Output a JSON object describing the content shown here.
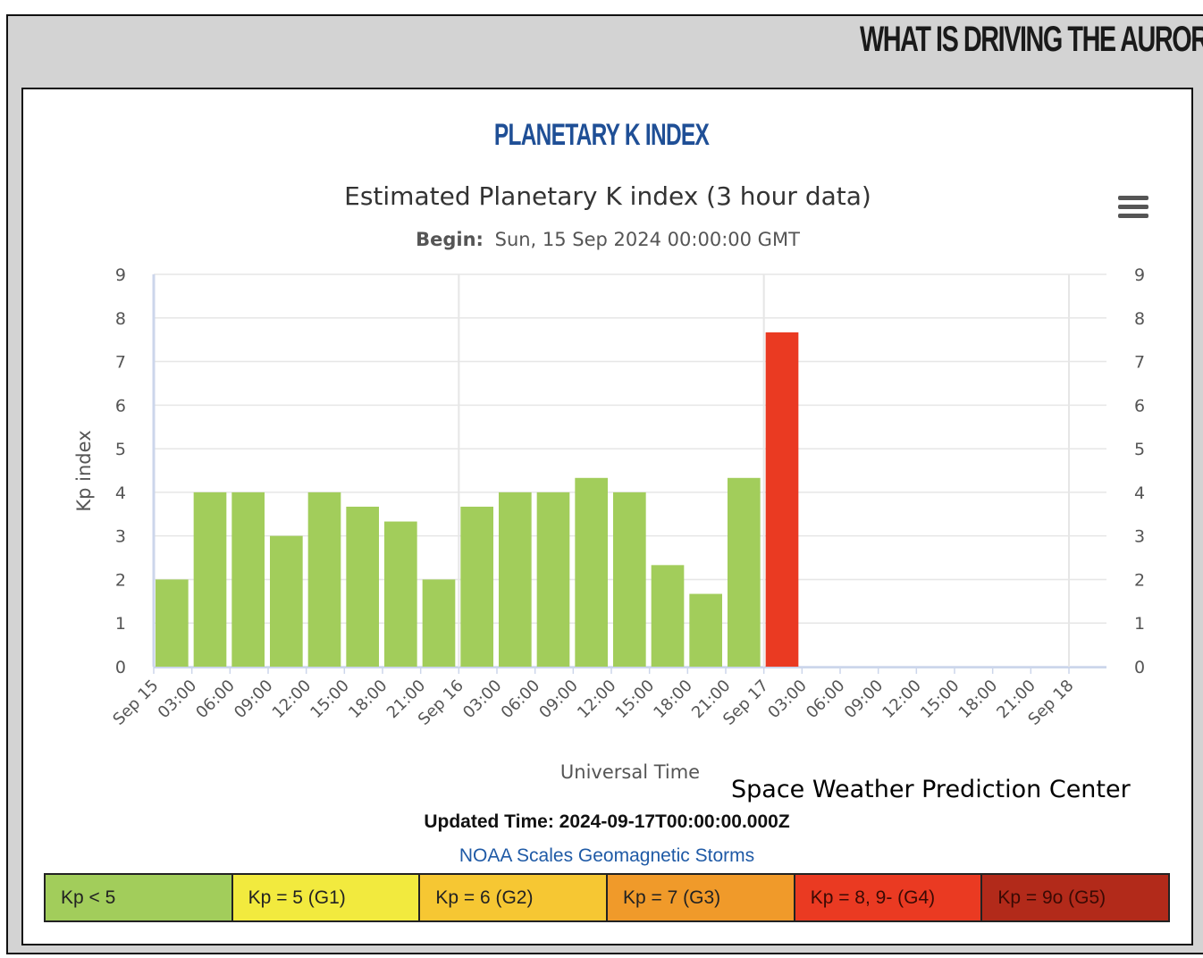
{
  "banner": "WHAT IS DRIVING THE AURORA",
  "panel_title": "PLANETARY K INDEX",
  "credit": "Space Weather Prediction Center",
  "updated_label": "Updated Time: 2024-09-17T00:00:00.000Z",
  "scales_link": "NOAA Scales Geomagnetic Storms",
  "legend": [
    {
      "label": "Kp < 5",
      "color": "#a2cd5b",
      "text_color": "#222222"
    },
    {
      "label": "Kp = 5 (G1)",
      "color": "#f2ea3e",
      "text_color": "#222222"
    },
    {
      "label": "Kp = 6 (G2)",
      "color": "#f6c733",
      "text_color": "#222222"
    },
    {
      "label": "Kp = 7 (G3)",
      "color": "#f09a2a",
      "text_color": "#222222"
    },
    {
      "label": "Kp = 8, 9- (G4)",
      "color": "#ea3a22",
      "text_color": "#3a0a04"
    },
    {
      "label": "Kp = 9o (G5)",
      "color": "#b22a1a",
      "text_color": "#3a0a04"
    }
  ],
  "chart_data": {
    "type": "bar",
    "title": "Estimated Planetary K index (3 hour data)",
    "subtitle_label": "Begin:",
    "subtitle_value": "Sun, 15 Sep 2024 00:00:00 GMT",
    "xlabel": "Universal Time",
    "ylabel": "Kp index",
    "ylim": [
      0,
      9
    ],
    "yticks": [
      "0",
      "1",
      "2",
      "3",
      "4",
      "5",
      "6",
      "7",
      "8",
      "9"
    ],
    "xticks": [
      "Sep 15",
      "03:00",
      "06:00",
      "09:00",
      "12:00",
      "15:00",
      "18:00",
      "21:00",
      "Sep 16",
      "03:00",
      "06:00",
      "09:00",
      "12:00",
      "15:00",
      "18:00",
      "21:00",
      "Sep 17",
      "03:00",
      "06:00",
      "09:00",
      "12:00",
      "15:00",
      "18:00",
      "21:00",
      "Sep 18"
    ],
    "grid": true,
    "series": [
      {
        "values": [
          2.0,
          4.0,
          4.0,
          3.0,
          4.0,
          3.67,
          3.33,
          2.0,
          3.67,
          4.0,
          4.0,
          4.33,
          4.0,
          2.33,
          1.67,
          4.33,
          7.67
        ],
        "colors": [
          "#a2cd5b",
          "#a2cd5b",
          "#a2cd5b",
          "#a2cd5b",
          "#a2cd5b",
          "#a2cd5b",
          "#a2cd5b",
          "#a2cd5b",
          "#a2cd5b",
          "#a2cd5b",
          "#a2cd5b",
          "#a2cd5b",
          "#a2cd5b",
          "#a2cd5b",
          "#a2cd5b",
          "#a2cd5b",
          "#ea3a22"
        ]
      }
    ]
  },
  "menu_icon": "hamburger-menu-icon"
}
